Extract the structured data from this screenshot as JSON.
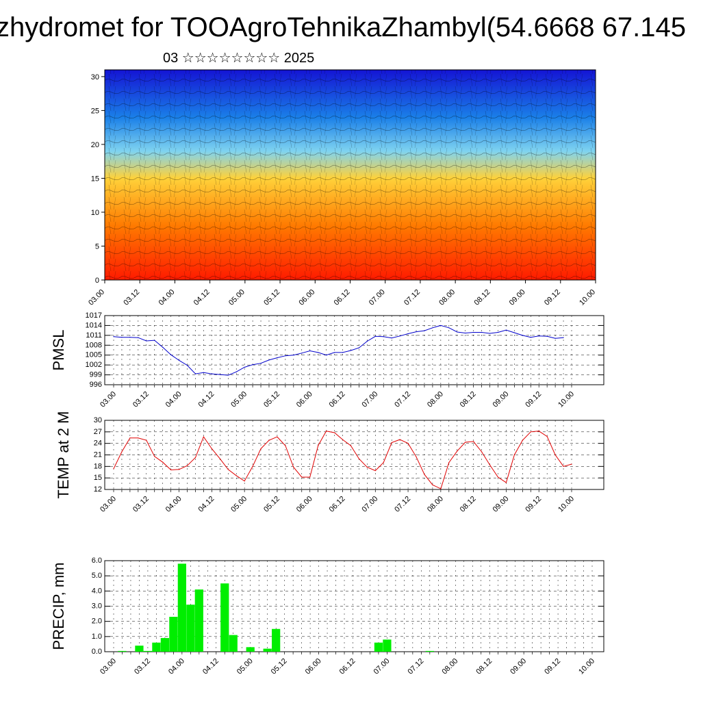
{
  "header": {
    "title": "zhydromet for TOOAgroTehnikaZhambyl(54.6668 67.145",
    "subtitle": "03 ☆☆☆☆☆☆☆☆ 2025"
  },
  "colors": {
    "pmsl_line": "#0000cc",
    "temp_line": "#e00000",
    "precip_bar": "#00ee00",
    "cross_section_warm": "#ff2a00",
    "cross_section_mid": "#ffe040",
    "cross_section_cold": "#1010e0"
  },
  "time_labels": [
    "03.00",
    "03.12",
    "04.00",
    "04.12",
    "05.00",
    "05.12",
    "06.00",
    "06.12",
    "07.00",
    "07.12",
    "08.00",
    "08.12",
    "09.00",
    "09.12",
    "10.00"
  ],
  "chart_data": [
    {
      "type": "heatmap",
      "title": "",
      "xlabel": "",
      "ylabel": "",
      "x": [
        "03.00",
        "03.12",
        "04.00",
        "04.12",
        "05.00",
        "05.12",
        "06.00",
        "06.12",
        "07.00",
        "07.12",
        "08.00",
        "08.12",
        "09.00",
        "09.12",
        "10.00"
      ],
      "y_ticks": [
        0,
        5,
        10,
        15,
        20,
        25,
        30
      ],
      "ylim": [
        0,
        31
      ],
      "colorscale": [
        "#ff1a00",
        "#ff7a00",
        "#ffd23a",
        "#7fd3f0",
        "#1a7fe8",
        "#1414d4"
      ],
      "color_levels_by_height": [
        0,
        8,
        15,
        19,
        24,
        31
      ],
      "overlay": "wind streamlines/barbs"
    },
    {
      "type": "line",
      "ylabel": "PMSL",
      "ylim": [
        996,
        1017
      ],
      "y_ticks": [
        996,
        999,
        1002,
        1005,
        1008,
        1011,
        1014,
        1017
      ],
      "x_labels": [
        "03.00",
        "03.12",
        "04.00",
        "04.12",
        "05.00",
        "05.12",
        "06.00",
        "06.12",
        "07.00",
        "07.12",
        "08.00",
        "08.12",
        "09.00",
        "09.12",
        "10.00"
      ],
      "series": [
        {
          "values": [
            1010.6,
            1010.4,
            1010.4,
            1010.3,
            1009.3,
            1009.5,
            1007.4,
            1005.1,
            1003.4,
            1001.9,
            999.3,
            999.7,
            999.3,
            999.1,
            998.9,
            999.9,
            1001.3,
            1002.1,
            1002.5,
            1003.5,
            1004.2,
            1004.8,
            1005.0,
            1005.6,
            1006.3,
            1005.8,
            1005.0,
            1005.8,
            1005.8,
            1006.4,
            1007.2,
            1009.2,
            1010.7,
            1010.6,
            1010.2,
            1010.8,
            1011.5,
            1012.1,
            1012.4,
            1013.3,
            1014.0,
            1013.3,
            1012.0,
            1011.7,
            1011.9,
            1011.9,
            1011.6,
            1011.9,
            1012.6,
            1011.8,
            1011.0,
            1010.4,
            1010.8,
            1010.7,
            1010.1,
            1010.3
          ]
        }
      ]
    },
    {
      "type": "line",
      "ylabel": "TEMP at 2 M",
      "ylim": [
        12,
        30
      ],
      "y_ticks": [
        12,
        15,
        18,
        21,
        24,
        27,
        30
      ],
      "x_labels": [
        "03.00",
        "03.12",
        "04.00",
        "04.12",
        "05.00",
        "05.12",
        "06.00",
        "06.12",
        "07.00",
        "07.12",
        "08.00",
        "08.12",
        "09.00",
        "09.12",
        "10.00"
      ],
      "series": [
        {
          "values": [
            17.4,
            21.8,
            25.4,
            25.4,
            24.8,
            20.6,
            19.1,
            17.1,
            17.2,
            18.2,
            20.3,
            25.7,
            22.6,
            20.0,
            17.2,
            15.6,
            14.2,
            18.0,
            22.6,
            24.8,
            25.7,
            23.4,
            17.8,
            15.2,
            15.2,
            23.4,
            27.2,
            26.8,
            25.0,
            23.4,
            20.0,
            17.8,
            16.9,
            19.0,
            24.2,
            25.0,
            24.0,
            20.5,
            15.9,
            13.2,
            12.2,
            19.0,
            22.0,
            24.3,
            24.5,
            21.8,
            18.4,
            15.2,
            13.8,
            21.0,
            24.8,
            27.0,
            27.2,
            25.8,
            21.0,
            18.0,
            18.6
          ]
        }
      ]
    },
    {
      "type": "bar",
      "ylabel": "PRECIP, mm",
      "ylim": [
        0,
        6
      ],
      "y_ticks": [
        "0.0",
        "1.0",
        "2.0",
        "3.0",
        "4.0",
        "5.0",
        "6.0"
      ],
      "x_labels": [
        "03.00",
        "03.12",
        "04.00",
        "04.12",
        "05.00",
        "05.12",
        "06.00",
        "06.12",
        "07.00",
        "07.12",
        "08.00",
        "08.12",
        "09.00",
        "09.12",
        "10.00"
      ],
      "values": [
        0.0,
        0.05,
        0,
        0.4,
        0.05,
        0.6,
        0.9,
        2.3,
        5.8,
        3.1,
        4.1,
        0,
        0,
        4.5,
        1.1,
        0,
        0.3,
        0,
        0.2,
        1.5,
        0,
        0,
        0,
        0,
        0,
        0,
        0,
        0,
        0,
        0,
        0.0,
        0.6,
        0.8,
        0,
        0,
        0,
        0,
        0.05
      ]
    }
  ]
}
